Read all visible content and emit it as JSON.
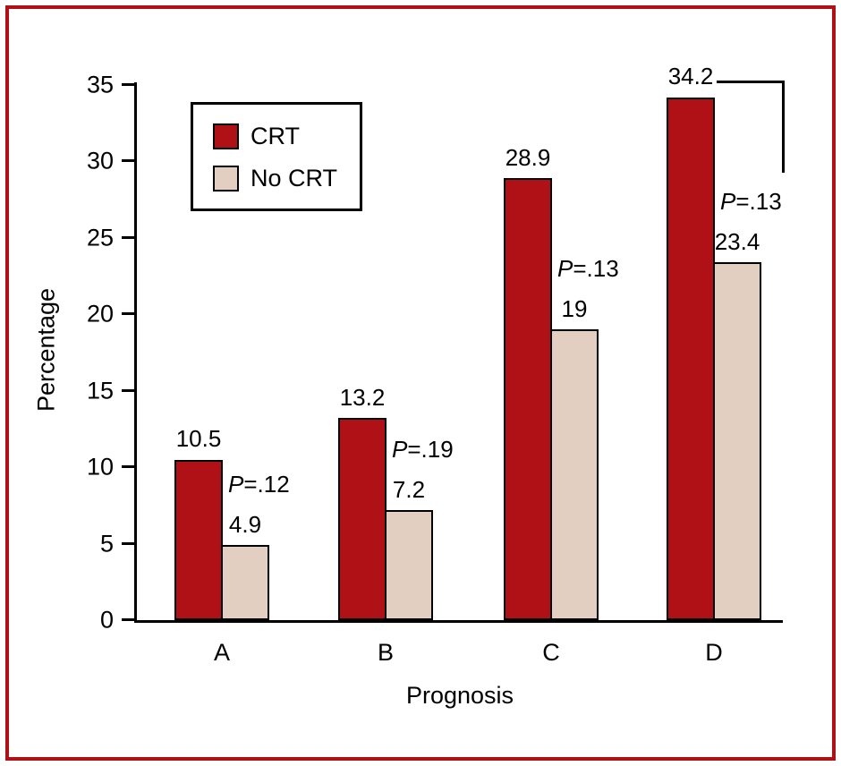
{
  "figure": {
    "border_color": "#b01116",
    "background": "#ffffff"
  },
  "chart_data": {
    "type": "bar",
    "title": "",
    "categories": [
      "A",
      "B",
      "C",
      "D"
    ],
    "series": [
      {
        "name": "CRT",
        "color": "#b01116",
        "values": [
          10.5,
          13.2,
          28.9,
          34.2
        ],
        "labels": [
          "10.5",
          "13.2",
          "28.9",
          "34.2"
        ]
      },
      {
        "name": "No CRT",
        "color": "#e2cfc1",
        "values": [
          4.9,
          7.2,
          19,
          23.4
        ],
        "labels": [
          "4.9",
          "7.2",
          "19",
          "23.4"
        ]
      }
    ],
    "p_values": [
      "P=.12",
      "P=.19",
      "P=.13",
      "P=.13"
    ],
    "xlabel": "Prognosis",
    "ylabel": "Percentage",
    "ylim": [
      0,
      35
    ],
    "yticks": [
      0,
      5,
      10,
      15,
      20,
      25,
      30,
      35
    ],
    "grid": false,
    "legend_position": "top-left",
    "bar_edge_color": "#000000"
  }
}
